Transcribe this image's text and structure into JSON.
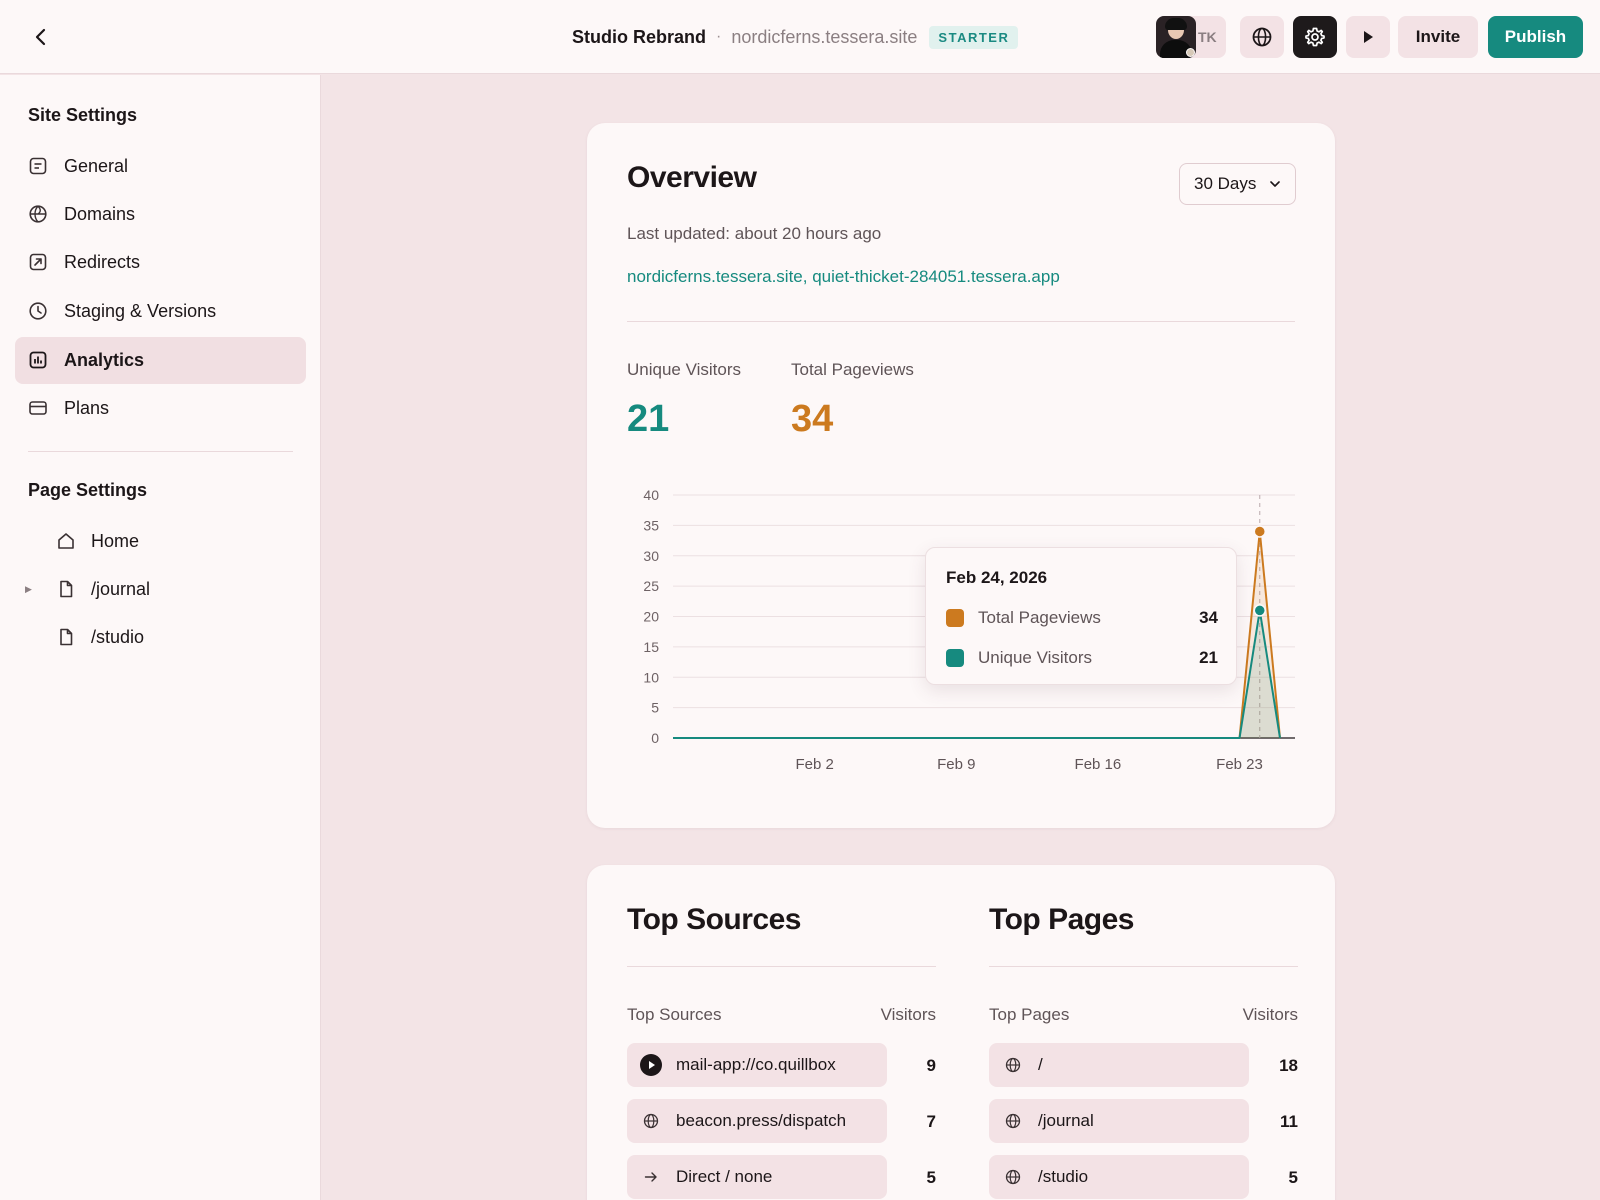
{
  "header": {
    "back_icon": "chevron-left-icon",
    "project_name": "Studio Rebrand",
    "separator": "·",
    "site_domain": "nordicferns.tessera.site",
    "plan_badge": "STARTER",
    "user_initials": "TK",
    "globe_icon": "globe-icon",
    "settings_icon": "gear-icon",
    "preview_icon": "play-icon",
    "invite_label": "Invite",
    "publish_label": "Publish",
    "colors": {
      "publish": "#168a7f",
      "badge_text": "#1a8a82"
    }
  },
  "sidebar": {
    "site_settings_title": "Site Settings",
    "site_items": [
      {
        "label": "General",
        "icon": "list-icon"
      },
      {
        "label": "Domains",
        "icon": "globe-icon"
      },
      {
        "label": "Redirects",
        "icon": "redirect-arrow-icon"
      },
      {
        "label": "Staging & Versions",
        "icon": "clock-icon"
      },
      {
        "label": "Analytics",
        "icon": "bar-chart-icon",
        "active": true
      },
      {
        "label": "Plans",
        "icon": "credit-card-icon"
      }
    ],
    "page_settings_title": "Page Settings",
    "pages": [
      {
        "label": "Home",
        "icon": "home-icon",
        "expandable": false
      },
      {
        "label": "/journal",
        "icon": "file-icon",
        "expandable": true
      },
      {
        "label": "/studio",
        "icon": "file-icon",
        "expandable": false
      }
    ]
  },
  "overview": {
    "title": "Overview",
    "range": "30 Days",
    "last_updated": "Last updated: about 20 hours ago",
    "domains": "nordicferns.tessera.site, quiet-thicket-284051.tessera.app",
    "stats": {
      "unique_visitors_label": "Unique Visitors",
      "unique_visitors": "21",
      "pageviews_label": "Total Pageviews",
      "pageviews": "34"
    },
    "tooltip": {
      "date": "Feb 24, 2026",
      "rows": [
        {
          "label": "Total Pageviews",
          "value": "34",
          "color": "#cc7a1f"
        },
        {
          "label": "Unique Visitors",
          "value": "21",
          "color": "#168a7f"
        }
      ]
    }
  },
  "chart_data": {
    "type": "area",
    "title": "",
    "xlabel": "",
    "ylabel": "",
    "ylim": [
      0,
      40
    ],
    "y_ticks": [
      "0",
      "5",
      "10",
      "15",
      "20",
      "25",
      "30",
      "35",
      "40"
    ],
    "x_ticks": [
      "Feb 2",
      "Feb 9",
      "Feb 16",
      "Feb 23"
    ],
    "x": [
      "Jan 26",
      "Jan 27",
      "Jan 28",
      "Jan 29",
      "Jan 30",
      "Jan 31",
      "Feb 1",
      "Feb 2",
      "Feb 3",
      "Feb 4",
      "Feb 5",
      "Feb 6",
      "Feb 7",
      "Feb 8",
      "Feb 9",
      "Feb 10",
      "Feb 11",
      "Feb 12",
      "Feb 13",
      "Feb 14",
      "Feb 15",
      "Feb 16",
      "Feb 17",
      "Feb 18",
      "Feb 19",
      "Feb 20",
      "Feb 21",
      "Feb 22",
      "Feb 23",
      "Feb 24",
      "Feb 25"
    ],
    "series": [
      {
        "name": "Total Pageviews",
        "color": "#cc7a1f",
        "values": [
          0,
          0,
          0,
          0,
          0,
          0,
          0,
          0,
          0,
          0,
          0,
          0,
          0,
          0,
          0,
          0,
          0,
          0,
          0,
          0,
          0,
          0,
          0,
          0,
          0,
          0,
          0,
          0,
          0,
          34,
          0
        ]
      },
      {
        "name": "Unique Visitors",
        "color": "#168a7f",
        "values": [
          0,
          0,
          0,
          0,
          0,
          0,
          0,
          0,
          0,
          0,
          0,
          0,
          0,
          0,
          0,
          0,
          0,
          0,
          0,
          0,
          0,
          0,
          0,
          0,
          0,
          0,
          0,
          0,
          0,
          21,
          0
        ]
      }
    ],
    "highlighted": "Feb 24",
    "grid": true,
    "legend": "tooltip"
  },
  "top_sources": {
    "title": "Top Sources",
    "col_left": "Top Sources",
    "col_right": "Visitors",
    "rows": [
      {
        "label": "mail-app://co.quillbox",
        "count": "9",
        "icon": "play-circle-icon"
      },
      {
        "label": "beacon.press/dispatch",
        "count": "7",
        "icon": "globe-icon"
      },
      {
        "label": "Direct / none",
        "count": "5",
        "icon": "arrow-right-icon"
      }
    ]
  },
  "top_pages": {
    "title": "Top Pages",
    "col_left": "Top Pages",
    "col_right": "Visitors",
    "rows": [
      {
        "label": "/",
        "count": "18",
        "icon": "globe-icon"
      },
      {
        "label": "/journal",
        "count": "11",
        "icon": "globe-icon"
      },
      {
        "label": "/studio",
        "count": "5",
        "icon": "globe-icon"
      }
    ]
  }
}
